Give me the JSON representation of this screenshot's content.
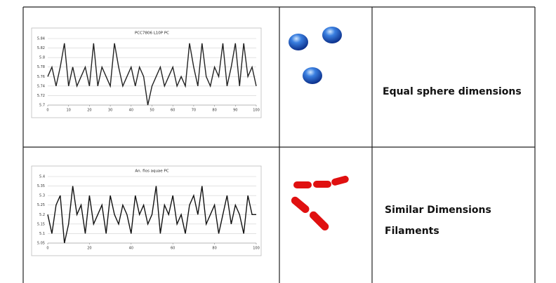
{
  "table": {
    "rows": [
      {
        "chart": {
          "type": "line",
          "title": "PCC7806 L10P PC",
          "x": [
            0,
            2,
            4,
            6,
            8,
            10,
            12,
            14,
            16,
            18,
            20,
            22,
            24,
            26,
            28,
            30,
            32,
            34,
            36,
            38,
            40,
            42,
            44,
            46,
            48,
            50,
            52,
            54,
            56,
            58,
            60,
            62,
            64,
            66,
            68,
            70,
            72,
            74,
            76,
            78,
            80,
            82,
            84,
            86,
            88,
            90,
            92,
            94,
            96,
            98,
            100
          ],
          "values": [
            5.76,
            5.78,
            5.74,
            5.78,
            5.83,
            5.74,
            5.78,
            5.74,
            5.76,
            5.78,
            5.74,
            5.83,
            5.74,
            5.78,
            5.76,
            5.74,
            5.83,
            5.78,
            5.74,
            5.76,
            5.78,
            5.74,
            5.78,
            5.76,
            5.7,
            5.74,
            5.76,
            5.78,
            5.74,
            5.76,
            5.78,
            5.74,
            5.76,
            5.74,
            5.83,
            5.78,
            5.74,
            5.83,
            5.76,
            5.74,
            5.78,
            5.76,
            5.83,
            5.74,
            5.78,
            5.83,
            5.74,
            5.83,
            5.76,
            5.78,
            5.74
          ],
          "color": "#222222",
          "xlim": [
            0,
            100
          ],
          "xticks": [
            0,
            10,
            20,
            30,
            40,
            50,
            60,
            70,
            80,
            90,
            100
          ],
          "ylim": [
            5.7,
            5.84
          ],
          "yticks": [
            5.7,
            5.72,
            5.74,
            5.76,
            5.78,
            5.8,
            5.82,
            5.84
          ],
          "grid": true
        },
        "description": [
          "Equal sphere dimensions"
        ]
      },
      {
        "chart": {
          "type": "line",
          "title": "An. flos aquae PC",
          "x": [
            0,
            2,
            4,
            6,
            8,
            10,
            12,
            14,
            16,
            18,
            20,
            22,
            24,
            26,
            28,
            30,
            32,
            34,
            36,
            38,
            40,
            42,
            44,
            46,
            48,
            50,
            52,
            54,
            56,
            58,
            60,
            62,
            64,
            66,
            68,
            70,
            72,
            74,
            76,
            78,
            80,
            82,
            84,
            86,
            88,
            90,
            92,
            94,
            96,
            98,
            100
          ],
          "values": [
            5.2,
            5.1,
            5.25,
            5.3,
            5.05,
            5.15,
            5.35,
            5.2,
            5.25,
            5.1,
            5.3,
            5.15,
            5.2,
            5.25,
            5.1,
            5.3,
            5.2,
            5.15,
            5.25,
            5.2,
            5.1,
            5.3,
            5.2,
            5.25,
            5.15,
            5.2,
            5.35,
            5.1,
            5.25,
            5.2,
            5.3,
            5.15,
            5.2,
            5.1,
            5.25,
            5.3,
            5.2,
            5.35,
            5.15,
            5.2,
            5.25,
            5.1,
            5.2,
            5.3,
            5.15,
            5.25,
            5.2,
            5.1,
            5.3,
            5.2,
            5.2
          ],
          "color": "#111111",
          "xlim": [
            0,
            100
          ],
          "xticks": [
            0,
            20,
            40,
            60,
            80,
            100
          ],
          "ylim": [
            5.05,
            5.4
          ],
          "yticks": [
            5.05,
            5.1,
            5.15,
            5.2,
            5.25,
            5.3,
            5.35,
            5.4
          ],
          "grid": true
        },
        "description": [
          "Similar Dimensions",
          "Filaments"
        ]
      }
    ]
  }
}
